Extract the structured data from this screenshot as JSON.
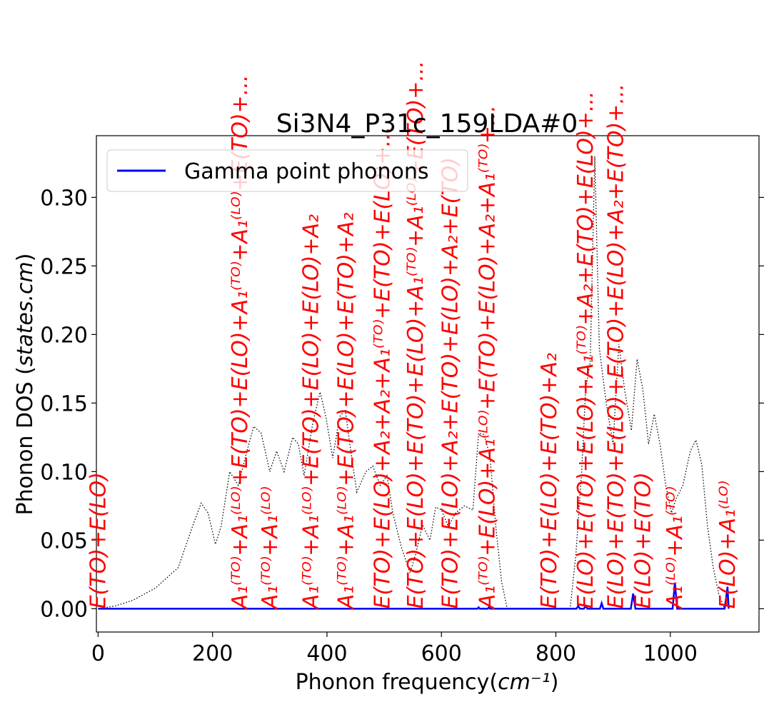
{
  "chart_data": {
    "type": "line",
    "title": "Si3N4_P31c_159LDA#0",
    "xlabel": "Phonon frequency(cm⁻¹)",
    "ylabel": "Phonon DOS (states.cm)",
    "xlim": [
      -3,
      1155
    ],
    "ylim": [
      -0.017,
      0.345
    ],
    "x_ticks": [
      0,
      200,
      400,
      600,
      800,
      1000
    ],
    "y_ticks": [
      0.0,
      0.05,
      0.1,
      0.15,
      0.2,
      0.25,
      0.3
    ],
    "y_tick_labels": [
      "0.00",
      "0.05",
      "0.10",
      "0.15",
      "0.20",
      "0.25",
      "0.30"
    ],
    "grid": false,
    "legend": {
      "position": "top-left",
      "entries": [
        "Gamma point phonons"
      ]
    },
    "series": [
      {
        "name": "Gamma point phonons",
        "style": "solid",
        "color": "#0000ff",
        "points": [
          [
            0,
            0
          ],
          [
            663,
            0
          ],
          [
            665,
            0.001
          ],
          [
            667,
            0
          ],
          [
            681,
            0
          ],
          [
            683,
            0.001
          ],
          [
            685,
            0
          ],
          [
            836,
            0
          ],
          [
            839,
            0.002
          ],
          [
            842,
            0
          ],
          [
            849,
            0
          ],
          [
            852,
            0.002
          ],
          [
            855,
            0
          ],
          [
            877,
            0
          ],
          [
            880,
            0.004
          ],
          [
            883,
            0
          ],
          [
            931,
            0
          ],
          [
            935,
            0.011
          ],
          [
            939,
            0
          ],
          [
            1004,
            0
          ],
          [
            1008,
            0.019
          ],
          [
            1012,
            0
          ],
          [
            1095,
            0
          ],
          [
            1100,
            0.016
          ],
          [
            1102,
            0
          ]
        ]
      },
      {
        "style": "dotted",
        "color": "#000000",
        "points": [
          [
            0,
            0
          ],
          [
            30,
            0.002
          ],
          [
            60,
            0.006
          ],
          [
            100,
            0.015
          ],
          [
            140,
            0.03
          ],
          [
            165,
            0.06
          ],
          [
            180,
            0.077
          ],
          [
            192,
            0.07
          ],
          [
            205,
            0.047
          ],
          [
            215,
            0.06
          ],
          [
            230,
            0.1
          ],
          [
            245,
            0.09
          ],
          [
            260,
            0.115
          ],
          [
            272,
            0.133
          ],
          [
            285,
            0.128
          ],
          [
            300,
            0.1
          ],
          [
            312,
            0.115
          ],
          [
            325,
            0.1
          ],
          [
            340,
            0.125
          ],
          [
            350,
            0.12
          ],
          [
            360,
            0.097
          ],
          [
            375,
            0.135
          ],
          [
            388,
            0.158
          ],
          [
            398,
            0.14
          ],
          [
            410,
            0.11
          ],
          [
            422,
            0.14
          ],
          [
            432,
            0.145
          ],
          [
            440,
            0.12
          ],
          [
            452,
            0.085
          ],
          [
            468,
            0.1
          ],
          [
            480,
            0.104
          ],
          [
            493,
            0.09
          ],
          [
            505,
            0.097
          ],
          [
            515,
            0.07
          ],
          [
            530,
            0.045
          ],
          [
            545,
            0.026
          ],
          [
            555,
            0.04
          ],
          [
            567,
            0.061
          ],
          [
            580,
            0.05
          ],
          [
            590,
            0.074
          ],
          [
            600,
            0.072
          ],
          [
            612,
            0.06
          ],
          [
            625,
            0.07
          ],
          [
            640,
            0.075
          ],
          [
            655,
            0.072
          ],
          [
            665,
            0.128
          ],
          [
            675,
            0.127
          ],
          [
            685,
            0.11
          ],
          [
            695,
            0.06
          ],
          [
            705,
            0.02
          ],
          [
            715,
            0.0
          ],
          [
            825,
            0.0
          ],
          [
            835,
            0.04
          ],
          [
            845,
            0.1
          ],
          [
            852,
            0.16
          ],
          [
            860,
            0.18
          ],
          [
            868,
            0.33
          ],
          [
            876,
            0.19
          ],
          [
            888,
            0.15
          ],
          [
            900,
            0.12
          ],
          [
            910,
            0.193
          ],
          [
            920,
            0.16
          ],
          [
            932,
            0.13
          ],
          [
            942,
            0.182
          ],
          [
            952,
            0.16
          ],
          [
            962,
            0.12
          ],
          [
            972,
            0.142
          ],
          [
            982,
            0.12
          ],
          [
            992,
            0.09
          ],
          [
            1002,
            0.07
          ],
          [
            1010,
            0.08
          ],
          [
            1022,
            0.09
          ],
          [
            1035,
            0.115
          ],
          [
            1045,
            0.123
          ],
          [
            1055,
            0.105
          ],
          [
            1065,
            0.06
          ],
          [
            1075,
            0.03
          ],
          [
            1085,
            0.01
          ],
          [
            1095,
            0.0
          ]
        ]
      }
    ],
    "annotations": [
      {
        "x": 0,
        "text": "E(TO)+E(LO)"
      },
      {
        "x": 248,
        "text": "A₁⁽ᵀᴼ⁾+A₁⁽ᴸᴼ⁾+E(TO)+E(LO)+A₁⁽ᵀᴼ⁾+A₁⁽ᴸᴼ⁾+E(TO)+..."
      },
      {
        "x": 300,
        "text": "A₁⁽ᵀᴼ⁾+A₁⁽ᴸᴼ⁾"
      },
      {
        "x": 372,
        "text": "A₁⁽ᵀᴼ⁾+A₁⁽ᴸᴼ⁾+E(TO)+E(LO)+E(LO)+A₂"
      },
      {
        "x": 433,
        "text": "A₁⁽ᵀᴼ⁾+A₁⁽ᴸᴼ⁾+E(TO)+E(LO)+E(TO)+A₂"
      },
      {
        "x": 497,
        "text": "E(TO)+E(LO)+A₂+A₂+A₁⁽ᵀᴼ⁾+E(TO)+E(LO)+..."
      },
      {
        "x": 555,
        "text": "E(TO)+E(LO)+E(TO)+E(LO)+A₁⁽ᵀᴼ⁾+A₁⁽ᴸᴼ⁾+E(TO)+..."
      },
      {
        "x": 615,
        "text": "E(TO)+E(LO)+A₂+E(TO)+E(LO)+A₂+E(TO)"
      },
      {
        "x": 680,
        "text": "A₁⁽ᵀᴼ⁾+E(LO)+A₁⁽ᴸᴼ⁾+E(TO)+E(LO)+A₂+A₁⁽ᵀᴼ⁾+..."
      },
      {
        "x": 788,
        "text": "E(TO)+E(LO)+E(TO)+A₂"
      },
      {
        "x": 852,
        "text": "E(LO)+E(TO)+E(LO)+A₁⁽ᵀᴼ⁾+A₂+E(TO)+E(LO)+..."
      },
      {
        "x": 905,
        "text": "E(LO)+E(TO)+E(LO)+E(TO)+E(LO)+A₂+E(TO)+..."
      },
      {
        "x": 952,
        "text": "E(LO)+E(TO)"
      },
      {
        "x": 1008,
        "text": "A₁⁽ᴸᴼ⁾+A₁⁽ᵀᴼ⁾"
      },
      {
        "x": 1100,
        "text": "E(LO)+A₁⁽ᴸᴼ⁾"
      }
    ]
  }
}
